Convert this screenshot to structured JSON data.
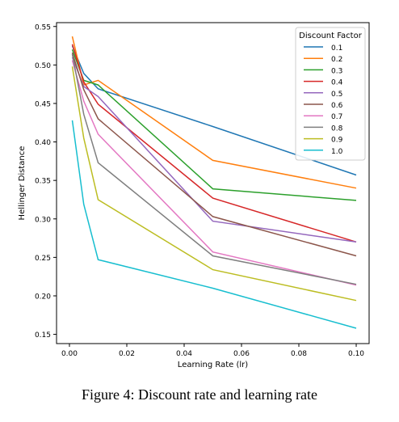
{
  "caption": "Figure 4: Discount rate and learning rate",
  "chart_data": {
    "type": "line",
    "xlabel": "Learning Rate (lr)",
    "ylabel": "Hellinger Distance",
    "xlim": [
      -0.0045,
      0.1045
    ],
    "ylim": [
      0.138,
      0.555
    ],
    "xticks": [
      0.0,
      0.02,
      0.04,
      0.06,
      0.08,
      0.1
    ],
    "xtick_labels": [
      "0.00",
      "0.02",
      "0.04",
      "0.06",
      "0.08",
      "0.10"
    ],
    "yticks": [
      0.15,
      0.2,
      0.25,
      0.3,
      0.35,
      0.4,
      0.45,
      0.5,
      0.55
    ],
    "ytick_labels": [
      "0.15",
      "0.20",
      "0.25",
      "0.30",
      "0.35",
      "0.40",
      "0.45",
      "0.50",
      "0.55"
    ],
    "grid": false,
    "legend": {
      "title": "Discount Factor",
      "position": "top-right"
    },
    "x": [
      0.001,
      0.005,
      0.01,
      0.05,
      0.1
    ],
    "series": [
      {
        "name": "0.1",
        "color": "#1f77b4",
        "values": [
          0.525,
          0.489,
          0.469,
          0.42,
          0.357
        ]
      },
      {
        "name": "0.2",
        "color": "#ff7f0e",
        "values": [
          0.537,
          0.474,
          0.48,
          0.376,
          0.34
        ]
      },
      {
        "name": "0.3",
        "color": "#2ca02c",
        "values": [
          0.52,
          0.48,
          0.474,
          0.339,
          0.324
        ]
      },
      {
        "name": "0.4",
        "color": "#d62728",
        "values": [
          0.527,
          0.478,
          0.449,
          0.327,
          0.27
        ]
      },
      {
        "name": "0.5",
        "color": "#9467bd",
        "values": [
          0.51,
          0.472,
          0.459,
          0.297,
          0.27
        ]
      },
      {
        "name": "0.6",
        "color": "#8c564b",
        "values": [
          0.516,
          0.468,
          0.43,
          0.303,
          0.252
        ]
      },
      {
        "name": "0.7",
        "color": "#e377c2",
        "values": [
          0.506,
          0.453,
          0.41,
          0.257,
          0.214
        ]
      },
      {
        "name": "0.8",
        "color": "#7f7f7f",
        "values": [
          0.514,
          0.436,
          0.373,
          0.252,
          0.215
        ]
      },
      {
        "name": "0.9",
        "color": "#bcbd22",
        "values": [
          0.498,
          0.405,
          0.325,
          0.234,
          0.194
        ]
      },
      {
        "name": "1.0",
        "color": "#17becf",
        "values": [
          0.428,
          0.319,
          0.247,
          0.21,
          0.158
        ]
      }
    ]
  }
}
